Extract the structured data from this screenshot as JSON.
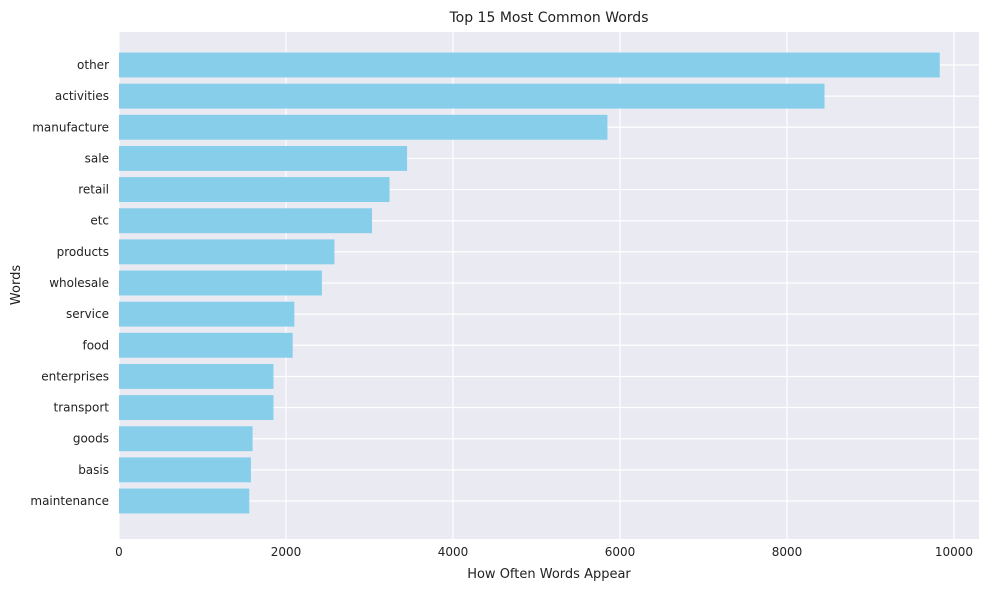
{
  "chart_data": {
    "type": "bar",
    "orientation": "horizontal",
    "title": "Top 15 Most Common Words",
    "xlabel": "How Often Words Appear",
    "ylabel": "Words",
    "categories": [
      "other",
      "activities",
      "manufacture",
      "sale",
      "retail",
      "etc",
      "products",
      "wholesale",
      "service",
      "food",
      "enterprises",
      "transport",
      "goods",
      "basis",
      "maintenance"
    ],
    "values": [
      9830,
      8450,
      5850,
      3450,
      3240,
      3030,
      2580,
      2430,
      2100,
      2080,
      1850,
      1850,
      1600,
      1580,
      1560
    ],
    "xlim": [
      0,
      10300
    ],
    "xticks": [
      0,
      2000,
      4000,
      6000,
      8000,
      10000
    ],
    "grid": true,
    "colors": {
      "bar": "#87ceeb",
      "background": "#eaeaf2",
      "grid": "#ffffff"
    }
  }
}
